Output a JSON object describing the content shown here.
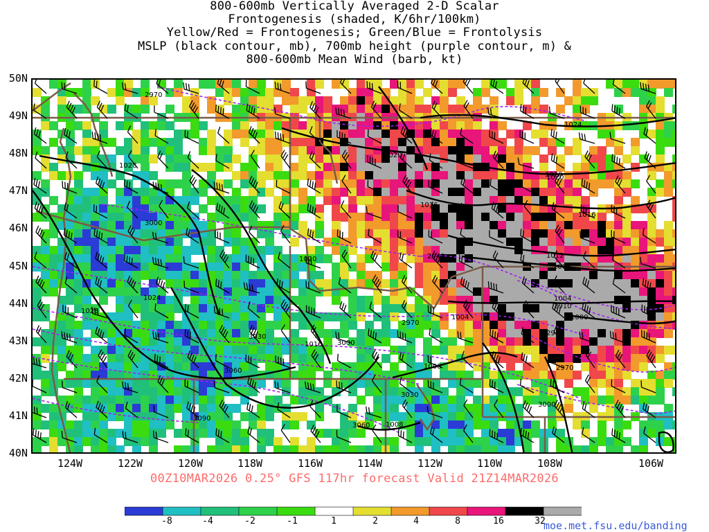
{
  "title": {
    "line1": "800-600mb Vertically Averaged 2-D Scalar",
    "line2": "Frontogenesis (shaded, K/6hr/100km)",
    "line3": "Yellow/Red = Frontogenesis;  Green/Blue = Frontolysis",
    "line4": "MSLP (black contour, mb), 700mb height (purple contour, m) &",
    "line5": "800-600mb Mean Wind (barb, kt)"
  },
  "axes": {
    "lat_labels": [
      "50N",
      "49N",
      "48N",
      "47N",
      "46N",
      "45N",
      "44N",
      "43N",
      "42N",
      "41N",
      "40N"
    ],
    "lon_labels": [
      "124W",
      "122W",
      "120W",
      "118W",
      "116W",
      "114W",
      "112W",
      "110W",
      "108W",
      "106W"
    ]
  },
  "footer": "00Z10MAR2026 0.25° GFS 117hr forecast Valid 21Z14MAR2026",
  "credit": "moe.met.fsu.edu/banding",
  "colorbar": {
    "labels": [
      "-8",
      "-4",
      "-2",
      "-1",
      "1",
      "2",
      "4",
      "8",
      "16",
      "32"
    ],
    "colors": [
      "#2a3bd6",
      "#1fbfc4",
      "#20c07a",
      "#2ed14a",
      "#3adc10",
      "#ffffff",
      "#e4de30",
      "#f29a2c",
      "#f0484a",
      "#e8157a",
      "#000000",
      "#aaaaaa"
    ]
  },
  "map_colors": {
    "mslp": "#000000",
    "height": "#a020f0",
    "borders": "#7a5a48",
    "barbs": "#000000"
  },
  "mslp_labels": [
    "1028",
    "1028",
    "1024",
    "1020",
    "1020",
    "1016",
    "1016",
    "1012",
    "1008",
    "1008",
    "1004",
    "1004",
    "1000",
    "1020",
    "1020",
    "1024",
    "1016",
    "1008"
  ],
  "height_labels": [
    "2970",
    "3000",
    "2940",
    "2970",
    "3000",
    "3030",
    "3060",
    "3030",
    "3060",
    "3090",
    "2910",
    "2940",
    "2970",
    "3000"
  ]
}
